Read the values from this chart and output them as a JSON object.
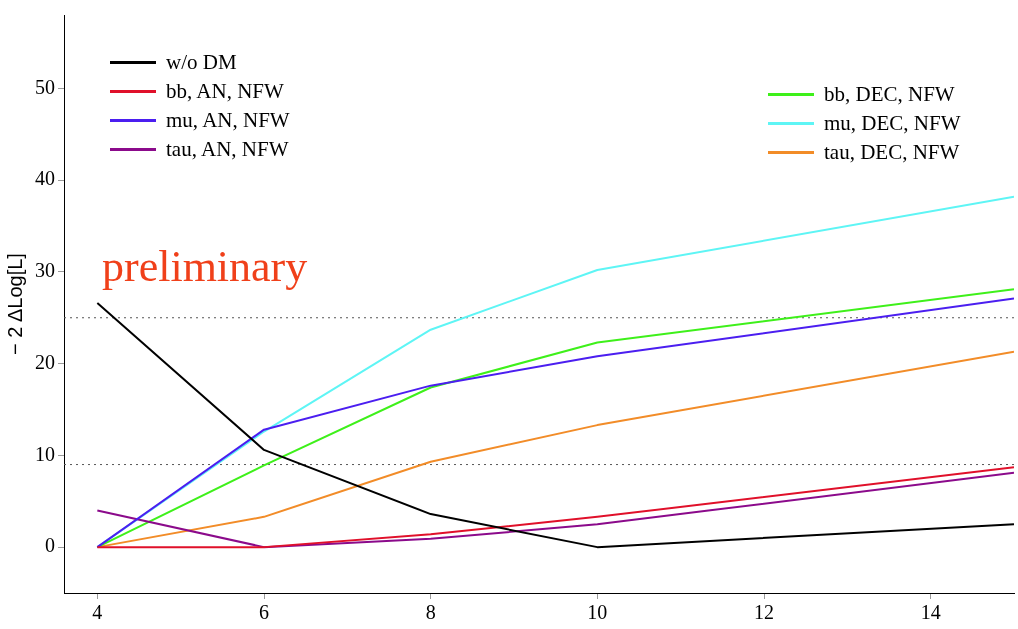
{
  "chart_data": {
    "type": "line",
    "ylabel": "− 2 ΔLog[L]",
    "annotations": [
      "preliminary"
    ],
    "x": [
      4,
      6,
      8,
      10,
      15
    ],
    "series": [
      {
        "name": "w/o DM",
        "color": "#000000",
        "values": [
          26.6,
          10.6,
          3.6,
          0,
          2.5
        ]
      },
      {
        "name": "bb, AN, NFW",
        "color": "#e0102a",
        "values": [
          0,
          0,
          1.4,
          3.3,
          8.7
        ]
      },
      {
        "name": "mu, AN, NFW",
        "color": "#4b1ef0",
        "values": [
          0,
          12.8,
          17.6,
          20.8,
          27.1
        ]
      },
      {
        "name": "tau, AN, NFW",
        "color": "#8b0a8b",
        "values": [
          4,
          0,
          0.9,
          2.5,
          8.1
        ]
      },
      {
        "name": "bb, DEC, NFW",
        "color": "#3ef01a",
        "values": [
          0,
          8.9,
          17.4,
          22.3,
          28.1
        ]
      },
      {
        "name": "mu, DEC, NFW",
        "color": "#5ef5f5",
        "values": [
          0,
          12.6,
          23.7,
          30.2,
          38.2
        ]
      },
      {
        "name": "tau, DEC, NFW",
        "color": "#f28c28",
        "values": [
          0,
          3.3,
          9.3,
          13.3,
          21.3
        ]
      }
    ],
    "xlim": [
      3.6,
      15
    ],
    "xticks": [
      4,
      6,
      8,
      10,
      12,
      14
    ],
    "ylim": [
      -5,
      58
    ],
    "yticks": [
      0,
      10,
      20,
      30,
      40,
      50
    ],
    "ref_lines": [
      {
        "axis": "y",
        "value": 25,
        "color": "#555555",
        "line_style": "dotted"
      },
      {
        "axis": "y",
        "value": 9,
        "color": "#555555",
        "line_style": "dotted"
      }
    ],
    "grid": false,
    "legend": "top",
    "marker": "none",
    "line_style": "solid"
  }
}
